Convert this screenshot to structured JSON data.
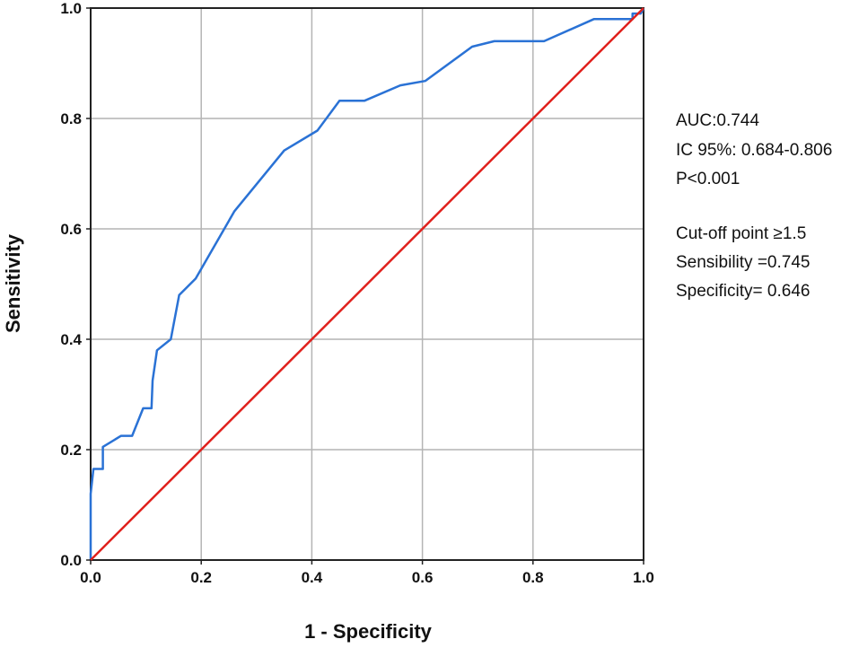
{
  "chart_data": {
    "type": "line",
    "title": "",
    "xlabel": "1 - Specificity",
    "ylabel": "Sensitivity",
    "xlim": [
      0,
      1
    ],
    "ylim": [
      0,
      1
    ],
    "xticks": [
      "0.0",
      "0.2",
      "0.4",
      "0.6",
      "0.8",
      "1.0"
    ],
    "yticks": [
      "0.0",
      "0.2",
      "0.4",
      "0.6",
      "0.8",
      "1.0"
    ],
    "grid": true,
    "series": [
      {
        "color": "#2a72d5",
        "x": [
          0.0,
          0.0,
          0.005,
          0.012,
          0.022,
          0.022,
          0.055,
          0.075,
          0.095,
          0.11,
          0.112,
          0.12,
          0.145,
          0.16,
          0.19,
          0.26,
          0.35,
          0.41,
          0.45,
          0.495,
          0.56,
          0.605,
          0.69,
          0.73,
          0.82,
          0.91,
          0.98,
          0.98,
          0.995,
          1.0
        ],
        "y": [
          0.0,
          0.12,
          0.165,
          0.165,
          0.165,
          0.205,
          0.225,
          0.225,
          0.275,
          0.275,
          0.325,
          0.38,
          0.4,
          0.48,
          0.51,
          0.632,
          0.742,
          0.778,
          0.832,
          0.832,
          0.86,
          0.868,
          0.93,
          0.94,
          0.94,
          0.98,
          0.98,
          0.99,
          0.99,
          1.0
        ]
      },
      {
        "color": "#e0201c",
        "x": [
          0,
          1
        ],
        "y": [
          0,
          1
        ]
      }
    ]
  },
  "annotations": {
    "auc": "AUC:0.744",
    "ic": "IC 95%: 0.684-0.806",
    "p": "P<0.001",
    "cutoff": "Cut-off point ≥1.5",
    "sensibility": "Sensibility =0.745",
    "specificity": "Specificity= 0.646"
  }
}
